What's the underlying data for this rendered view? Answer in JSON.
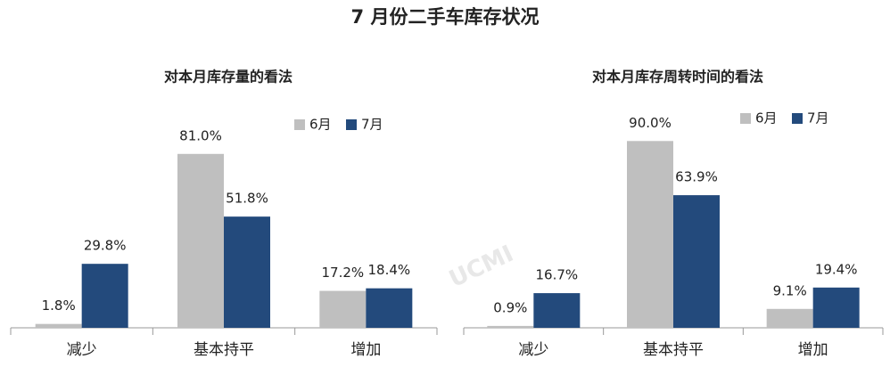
{
  "title": "7 月份二手车库存状况",
  "watermark": "UCMI",
  "chart_data": [
    {
      "type": "bar",
      "title": "对本月库存量的看法",
      "categories": [
        "减少",
        "基本持平",
        "增加"
      ],
      "series": [
        {
          "name": "6月",
          "color": "#bfbfbf",
          "values": [
            1.8,
            81.0,
            17.2
          ],
          "value_labels": [
            "1.8%",
            "81.0%",
            "17.2%"
          ]
        },
        {
          "name": "7月",
          "color": "#234a7c",
          "values": [
            29.8,
            51.8,
            18.4
          ],
          "value_labels": [
            "29.8%",
            "51.8%",
            "18.4%"
          ]
        }
      ],
      "legend": "upper right"
    },
    {
      "type": "bar",
      "title": "对本月库存周转时间的看法",
      "categories": [
        "减少",
        "基本持平",
        "增加"
      ],
      "series": [
        {
          "name": "6月",
          "color": "#bfbfbf",
          "values": [
            0.9,
            90.0,
            9.1
          ],
          "value_labels": [
            "0.9%",
            "90.0%",
            "9.1%"
          ]
        },
        {
          "name": "7月",
          "color": "#234a7c",
          "values": [
            16.7,
            63.9,
            19.4
          ],
          "value_labels": [
            "16.7%",
            "63.9%",
            "19.4%"
          ]
        }
      ],
      "legend": "upper right"
    }
  ]
}
